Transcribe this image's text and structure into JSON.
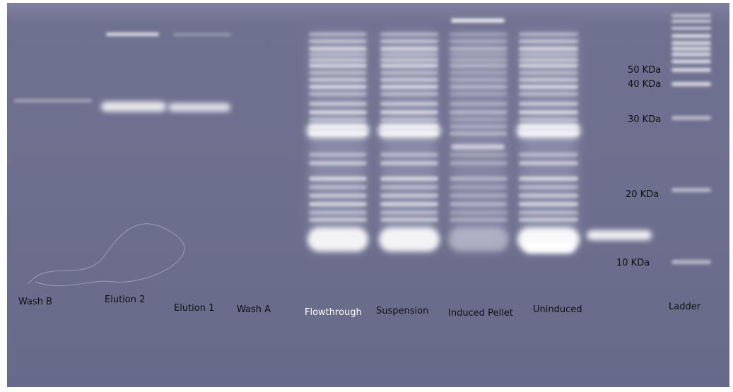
{
  "lanes": [
    {
      "label": "Wash B",
      "color": "#0f1014"
    },
    {
      "label": "Elution 2",
      "color": "#0f1014"
    },
    {
      "label": "Elution 1",
      "color": "#0f1014"
    },
    {
      "label": "Wash A",
      "color": "#0f1014"
    },
    {
      "label": "Flowthrough",
      "color": "#ffffff"
    },
    {
      "label": "Suspension",
      "color": "#0f1014"
    },
    {
      "label": "Induced Pellet",
      "color": "#0f1014"
    },
    {
      "label": "Uninduced",
      "color": "#0f1014"
    },
    {
      "label": "Ladder",
      "color": "#0f1014"
    }
  ],
  "markers": [
    {
      "label": "50 KDa"
    },
    {
      "label": "40 KDa"
    },
    {
      "label": "30 KDa"
    },
    {
      "label": "20 KDa"
    },
    {
      "label": "10 KDa"
    }
  ],
  "colors": {
    "gel_background": "#6e7090",
    "band": "#ffffff",
    "label_text": "#0f1014"
  }
}
